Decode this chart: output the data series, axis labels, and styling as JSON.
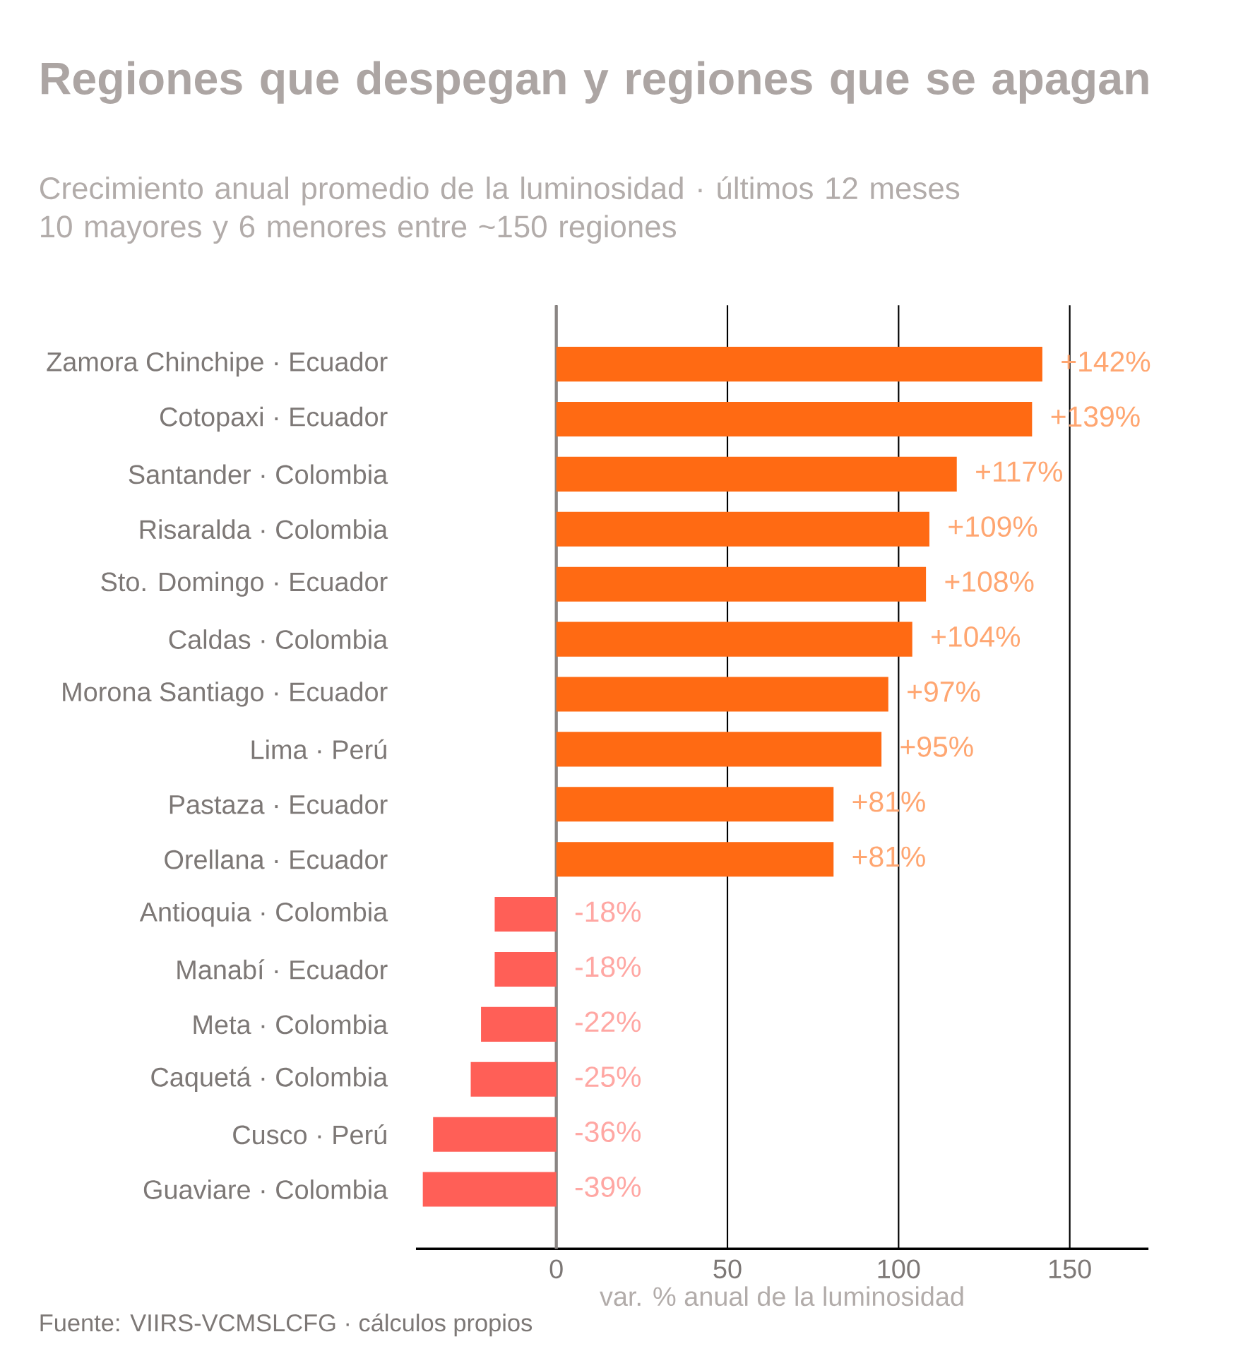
{
  "chart_data": {
    "type": "bar",
    "orientation": "horizontal",
    "title": "Regiones que despegan y regiones que se apagan",
    "subtitle": "Crecimiento anual promedio de la luminosidad · últimos 12 meses 10 mayores y 6 menores entre ~150 regiones",
    "xlabel": "var. % anual de la luminosidad",
    "annotations": [
      "Fuente: VIIRS-VCMSLCFG · cálculos propios"
    ],
    "categories": [
      "Zamora Chinchipe  ·  Ecuador",
      "Cotopaxi  ·  Ecuador",
      "Santander  ·  Colombia",
      "Risaralda  ·  Colombia",
      "Sto. Domingo  ·  Ecuador",
      "Caldas  ·  Colombia",
      "Morona Santiago  ·  Ecuador",
      "Lima  ·  Perú",
      "Pastaza  ·  Ecuador",
      "Orellana  ·  Ecuador",
      "Antioquia  ·  Colombia",
      "Manabí  ·  Ecuador",
      "Meta  ·  Colombia",
      "Caquetá  ·  Colombia",
      "Cusco  ·  Perú",
      "Guaviare  ·  Colombia"
    ],
    "values": [
      142,
      139,
      117,
      109,
      108,
      104,
      97,
      95,
      81,
      81,
      -18,
      -18,
      -22,
      -25,
      -36,
      -39
    ],
    "value_labels": [
      "+142%",
      "+139%",
      "+117%",
      "+109%",
      "+108%",
      "+104%",
      "+97%",
      "+95%",
      "+81%",
      "+81%",
      "-18%",
      "-18%",
      "-22%",
      "-25%",
      "-36%",
      "-39%"
    ],
    "colors": [
      "#ff6a13",
      "#ff6a13",
      "#ff6a13",
      "#ff6a13",
      "#ff6a13",
      "#ff6a13",
      "#ff6a13",
      "#ff6a13",
      "#ff6a13",
      "#ff6a13",
      "#ff5f57",
      "#ff5f57",
      "#ff5f57",
      "#ff5f57",
      "#ff5f57",
      "#ff5f57"
    ],
    "xlim": [
      -41,
      173
    ],
    "xticks": [
      0,
      50,
      100,
      150
    ],
    "grid": "x",
    "ref_lines": [
      {
        "axis": "x",
        "value": 0,
        "color": "#8a8583"
      }
    ]
  }
}
